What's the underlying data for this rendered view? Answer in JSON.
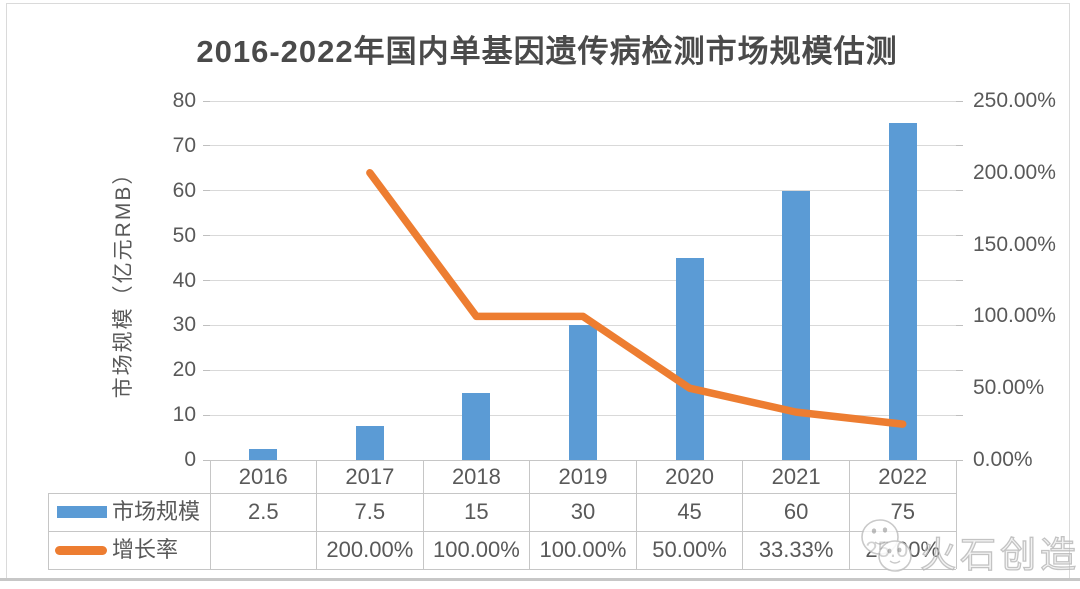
{
  "watermark": {
    "brand": "火石创造",
    "logo": "huoshi-stones-logo"
  },
  "chart_data": {
    "type": "combo-bar-line",
    "title": "2016-2022年国内单基因遗传病检测市场规模估测",
    "categories": [
      "2016",
      "2017",
      "2018",
      "2019",
      "2020",
      "2021",
      "2022"
    ],
    "series": [
      {
        "name": "市场规模",
        "type": "bar",
        "axis": "left",
        "color": "#5B9BD5",
        "values": [
          2.5,
          7.5,
          15,
          30,
          45,
          60,
          75
        ],
        "table_labels": [
          "2.5",
          "7.5",
          "15",
          "30",
          "45",
          "60",
          "75"
        ]
      },
      {
        "name": "增长率",
        "type": "line",
        "axis": "right",
        "color": "#ED7D31",
        "values": [
          null,
          200,
          100,
          100,
          50,
          33.33,
          25
        ],
        "table_labels": [
          "",
          "200.00%",
          "100.00%",
          "100.00%",
          "50.00%",
          "33.33%",
          "25.00%"
        ]
      }
    ],
    "left_axis": {
      "title": "市场规模（亿元RMB）",
      "min": 0,
      "max": 80,
      "step": 10,
      "tick_labels": [
        "0",
        "10",
        "20",
        "30",
        "40",
        "50",
        "60",
        "70",
        "80"
      ]
    },
    "right_axis": {
      "min": 0,
      "max": 250,
      "step": 50,
      "tick_labels": [
        "0.00%",
        "50.00%",
        "100.00%",
        "150.00%",
        "200.00%",
        "250.00%"
      ]
    },
    "grid": true,
    "legend_position": "data-table-left",
    "colors": {
      "bar": "#5B9BD5",
      "line": "#ED7D31",
      "grid": "#D9D9D9",
      "axis_text": "#595959",
      "title_text": "#4A4A4A",
      "table_border": "#C6C6C6"
    }
  }
}
